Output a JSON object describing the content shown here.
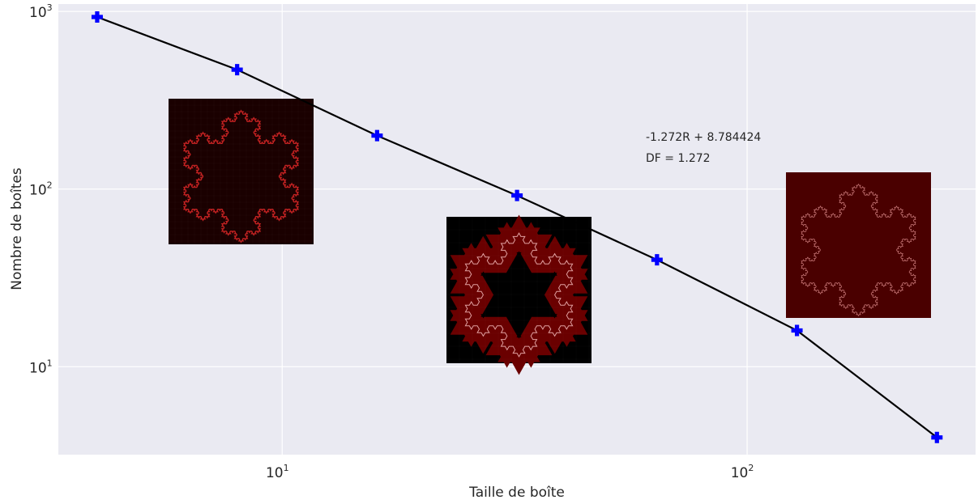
{
  "chart_data": {
    "type": "line",
    "xscale": "log",
    "yscale": "log",
    "xlabel": "Taille de boîte",
    "ylabel": "Nombre de boîtes",
    "xlim": [
      3.3,
      310
    ],
    "ylim": [
      3.2,
      1100
    ],
    "xticks": [
      {
        "base": "10",
        "exp": "1",
        "value": 10
      },
      {
        "base": "10",
        "exp": "2",
        "value": 100
      }
    ],
    "yticks": [
      {
        "base": "10",
        "exp": "1",
        "value": 10
      },
      {
        "base": "10",
        "exp": "2",
        "value": 100
      },
      {
        "base": "10",
        "exp": "3",
        "value": 1000
      }
    ],
    "grid": true,
    "series": [
      {
        "line_color": "#000000",
        "marker": "plus",
        "marker_color": "#0000ff",
        "x": [
          4,
          8,
          16,
          32,
          64,
          128,
          256
        ],
        "y": [
          930,
          470,
          200,
          92,
          40,
          16,
          4
        ]
      }
    ],
    "annotations": [
      {
        "text": "-1.272R + 8.784424"
      },
      {
        "text": "DF = 1.272"
      }
    ],
    "inset_images": [
      {
        "subject": "koch-snowflake-grid-fine",
        "background": "#1a0000",
        "stroke": "#c02020"
      },
      {
        "subject": "koch-snowflake-grid-medium",
        "background": "#000000",
        "stroke": "#e0a0a0",
        "fill": "#6a0000"
      },
      {
        "subject": "koch-snowflake-grid-coarse",
        "background": "#4a0000",
        "stroke": "#c07070"
      }
    ],
    "colors": {
      "plot_background": "#eaeaf2",
      "grid": "#ffffff"
    }
  }
}
